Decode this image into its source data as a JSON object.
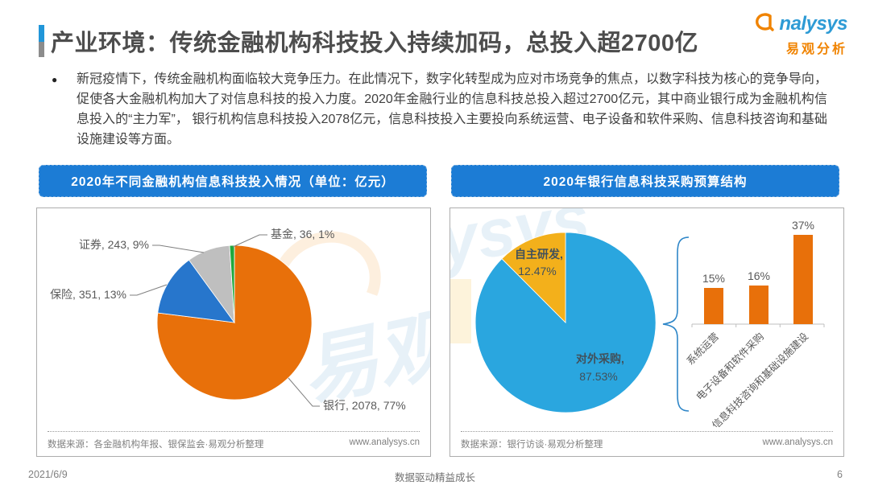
{
  "header": {
    "title": "产业环境：传统金融机构科技投入持续加码，总投入超2700亿",
    "logo": {
      "brand": "nalysys",
      "brand_cn": "易观分析"
    }
  },
  "intro": {
    "bullet": "●",
    "text": "新冠疫情下，传统金融机构面临较大竞争压力。在此情况下，数字化转型成为应对市场竞争的焦点，以数字科技为核心的竞争导向，促使各大金融机构加大了对信息科技的投入力度。2020年金融行业的信息科技总投入超过2700亿元，其中商业银行成为金融机构信息投入的“主力军”， 银行机构信息科技投入2078亿元，信息科技投入主要投向系统运营、电子设备和软件采购、信息科技咨询和基础设施建设等方面。"
  },
  "left_panel": {
    "banner": "2020年不同金融机构信息科技投入情况（单位：亿元）",
    "source": "数据来源：各金融机构年报、银保监会·易观分析整理",
    "website": "www.analysys.cn"
  },
  "right_panel": {
    "banner": "2020年银行信息科技采购预算结构",
    "source": "数据来源：银行访谈·易观分析整理",
    "website": "www.analysys.cn"
  },
  "watermarks": {
    "left_cn": "易观",
    "right_latin": "ysys"
  },
  "chart_data": [
    {
      "type": "pie",
      "title": "2020年不同金融机构信息科技投入情况（单位：亿元）",
      "unit": "亿元",
      "start_angle_deg": 0,
      "direction": "clockwise",
      "label_format": "{name}, {value}, {pct}",
      "series": [
        {
          "name": "银行",
          "value": 2078,
          "pct": "77%",
          "color": "#E8700A"
        },
        {
          "name": "保险",
          "value": 351,
          "pct": "13%",
          "color": "#2776CC"
        },
        {
          "name": "证券",
          "value": 243,
          "pct": "9%",
          "color": "#BFBFBF"
        },
        {
          "name": "基金",
          "value": 36,
          "pct": "1%",
          "color": "#1FA83D"
        }
      ]
    },
    {
      "type": "pie",
      "title": "2020年银行信息科技采购预算结构",
      "start_angle_deg": 0,
      "direction": "clockwise",
      "series": [
        {
          "name": "对外采购",
          "value": 87.53,
          "pct": "87.53%",
          "color": "#2AA6DF"
        },
        {
          "name": "自主研发",
          "value": 12.47,
          "pct": "12.47%",
          "color": "#F3B01B"
        }
      ]
    },
    {
      "type": "bar",
      "title": "2020年银行信息科技采购预算结构（对外采购明细）",
      "categories": [
        "系统运营",
        "电子设备和软件采购",
        "信息科技咨询和基础设施建设"
      ],
      "values": [
        15,
        16,
        37
      ],
      "value_labels": [
        "15%",
        "16%",
        "37%"
      ],
      "bar_color": "#E8700A",
      "ylim": [
        0,
        40
      ],
      "grid": false,
      "legend": false
    }
  ],
  "footer": {
    "date": "2021/6/9",
    "center": "数据驱动精益成长",
    "page": "6"
  }
}
